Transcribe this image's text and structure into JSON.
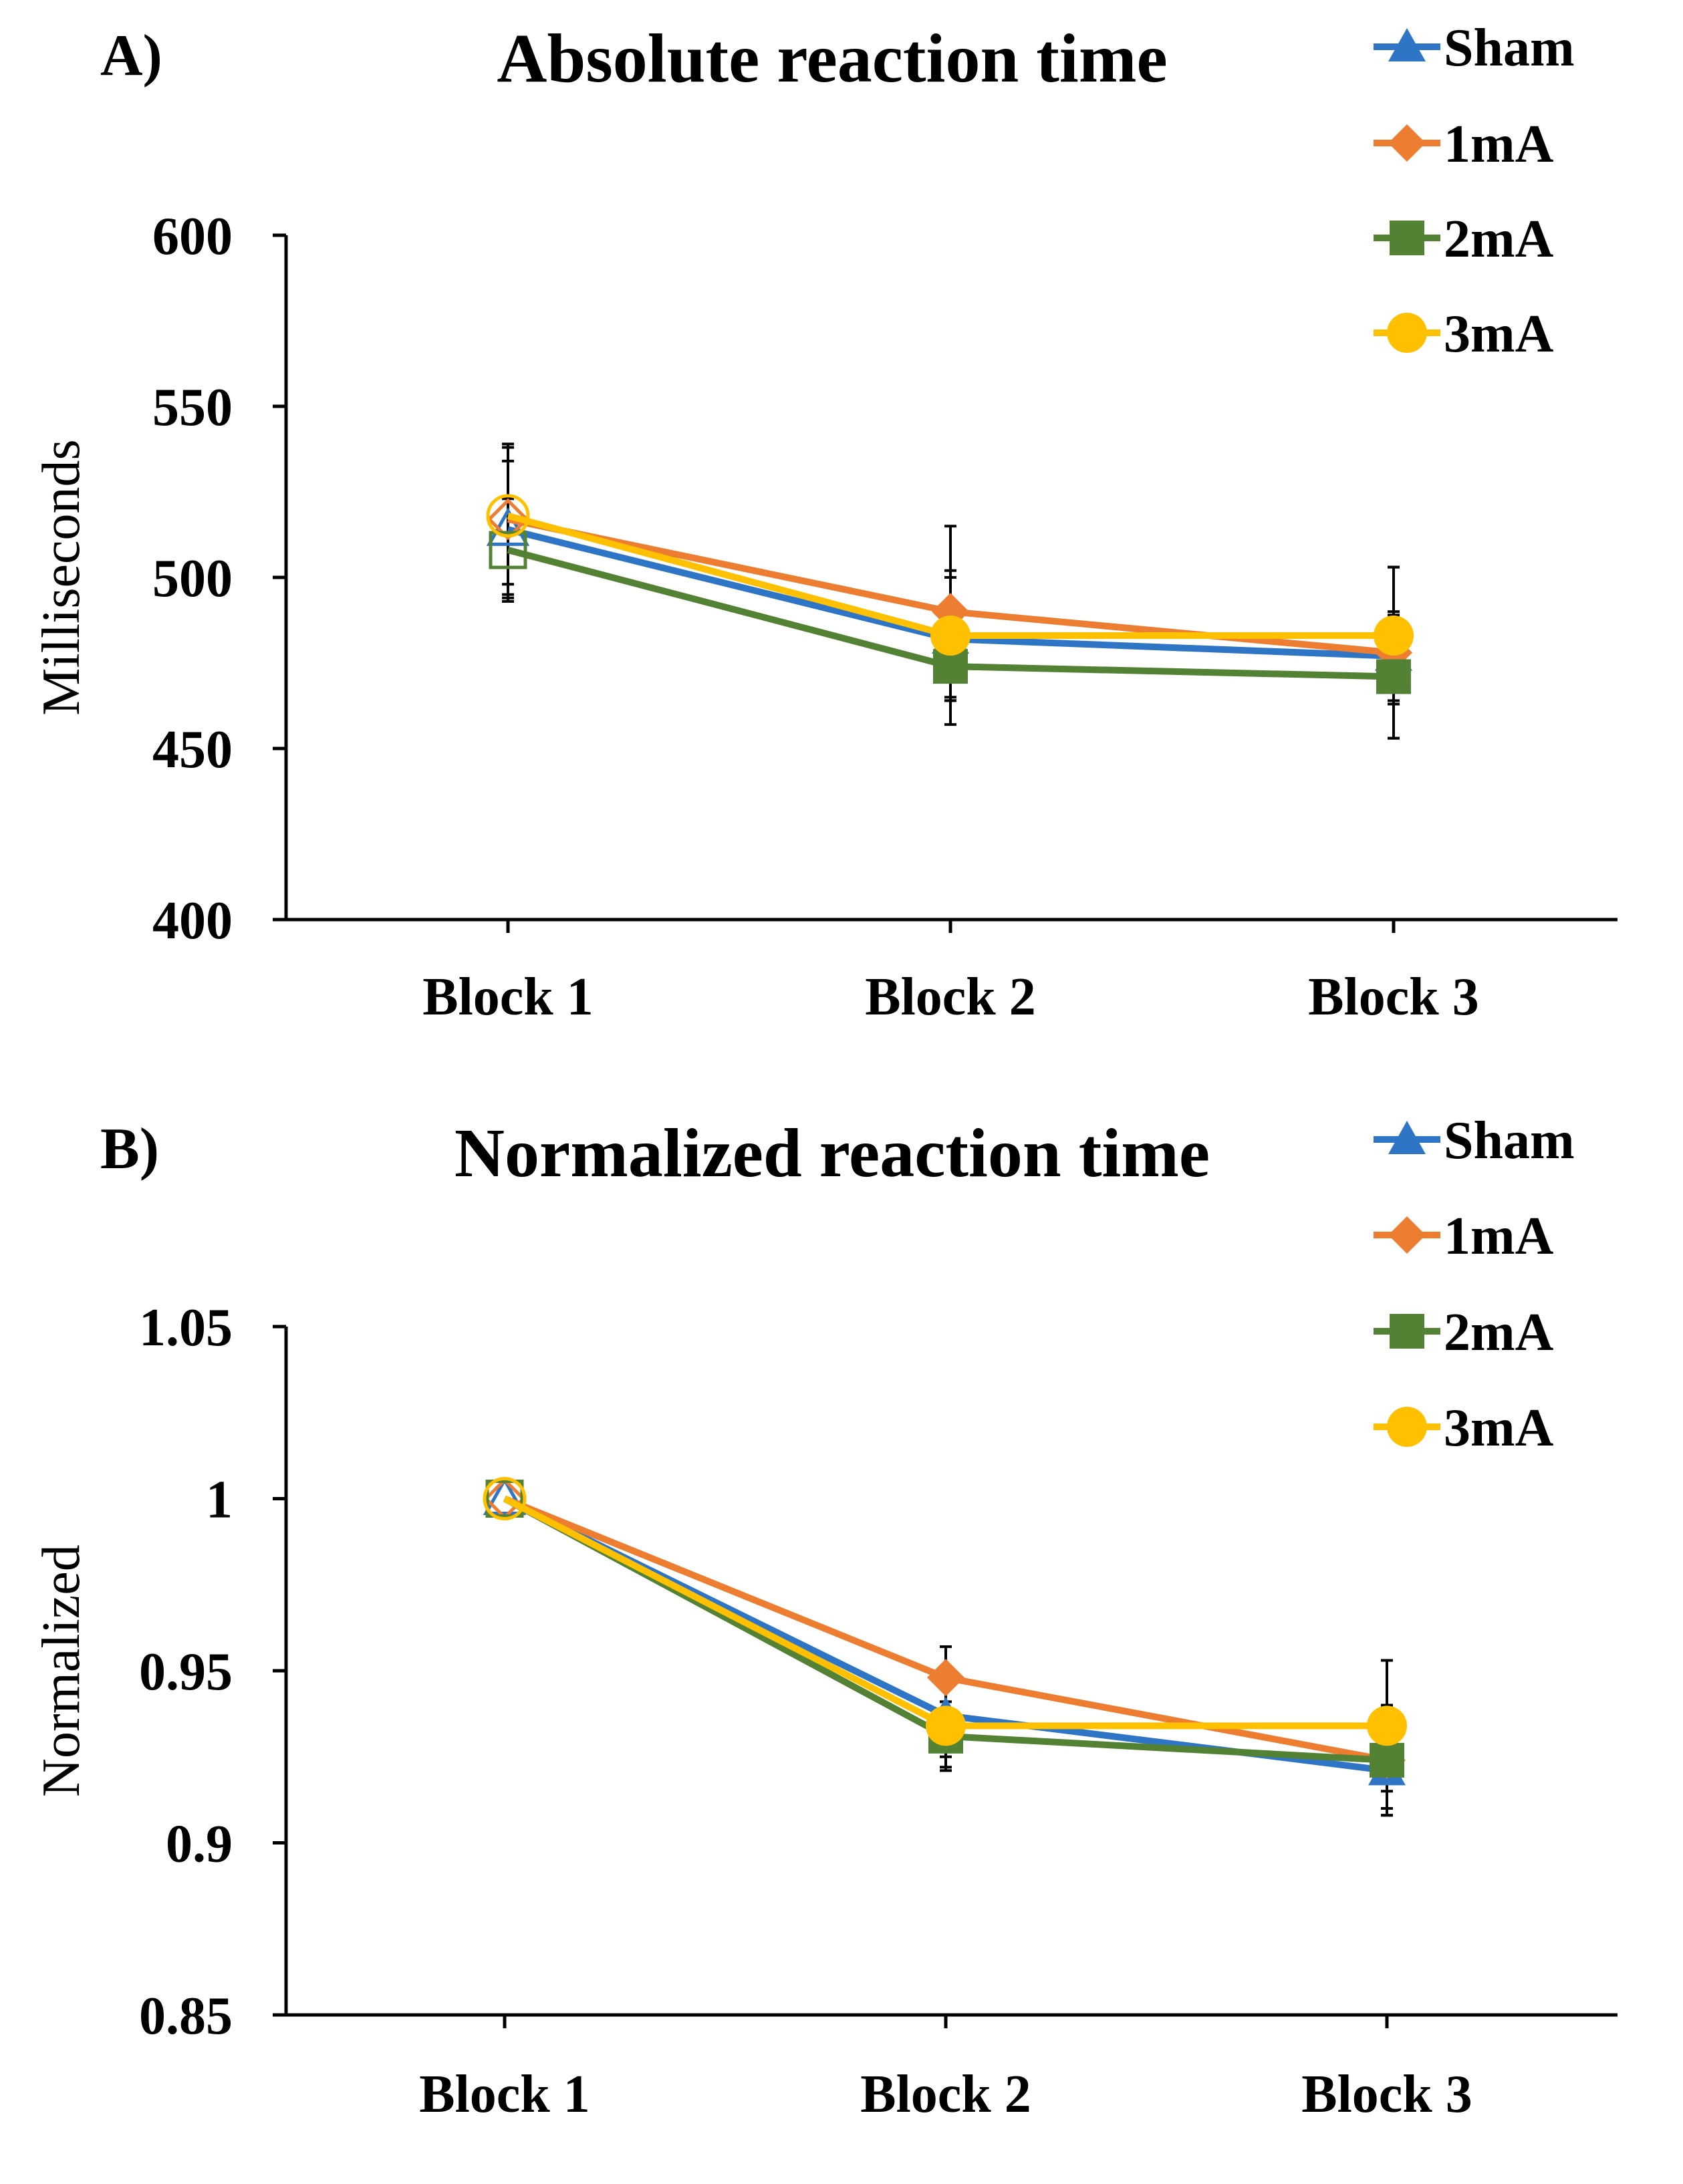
{
  "chart_data": [
    {
      "panel": "A)",
      "type": "line",
      "title": "Absolute reaction time",
      "xlabel": "",
      "ylabel": "Milliseconds",
      "categories": [
        "Block 1",
        "Block 2",
        "Block 3"
      ],
      "ylim": [
        400,
        600
      ],
      "yticks": [
        {
          "value": 400,
          "label": "400"
        },
        {
          "value": 450,
          "label": "450"
        },
        {
          "value": 500,
          "label": "500"
        },
        {
          "value": 550,
          "label": "550"
        },
        {
          "value": 600,
          "label": "600"
        }
      ],
      "legend_position": "top-right",
      "grid": false,
      "series": [
        {
          "name": "Sham",
          "color": "#2E75C6",
          "marker": "triangle",
          "values": [
            514,
            482,
            477
          ],
          "errors": [
            20,
            18,
            13
          ]
        },
        {
          "name": "1mA",
          "color": "#ED7D31",
          "marker": "diamond",
          "values": [
            517,
            490,
            478
          ],
          "errors": [
            22,
            25,
            25
          ]
        },
        {
          "name": "2mA",
          "color": "#548235",
          "marker": "square",
          "values": [
            508,
            474,
            471
          ],
          "errors": [
            15,
            17,
            18
          ]
        },
        {
          "name": "3mA",
          "color": "#FFC000",
          "marker": "circle",
          "values": [
            518,
            483,
            483
          ],
          "errors": [
            20,
            19,
            20
          ]
        }
      ]
    },
    {
      "panel": "B)",
      "type": "line",
      "title": "Normalized reaction time",
      "xlabel": "",
      "ylabel": "Normalized",
      "categories": [
        "Block 1",
        "Block 2",
        "Block 3"
      ],
      "ylim": [
        0.85,
        1.05
      ],
      "yticks": [
        {
          "value": 0.85,
          "label": "0.85"
        },
        {
          "value": 0.9,
          "label": "0.9"
        },
        {
          "value": 0.95,
          "label": "0.95"
        },
        {
          "value": 1.0,
          "label": "1"
        },
        {
          "value": 1.05,
          "label": "1.05"
        }
      ],
      "legend_position": "top-right",
      "grid": false,
      "series": [
        {
          "name": "Sham",
          "color": "#2E75C6",
          "marker": "triangle",
          "values": [
            1.0,
            0.937,
            0.921
          ],
          "errors": [
            0,
            0.012,
            0.013
          ]
        },
        {
          "name": "1mA",
          "color": "#ED7D31",
          "marker": "diamond",
          "values": [
            1.0,
            0.948,
            0.924
          ],
          "errors": [
            0,
            0.009,
            0.014
          ]
        },
        {
          "name": "2mA",
          "color": "#548235",
          "marker": "square",
          "values": [
            1.0,
            0.931,
            0.924
          ],
          "errors": [
            0,
            0.01,
            0.016
          ]
        },
        {
          "name": "3mA",
          "color": "#FFC000",
          "marker": "circle",
          "values": [
            1.0,
            0.934,
            0.934
          ],
          "errors": [
            0,
            0.012,
            0.019
          ]
        }
      ]
    }
  ]
}
